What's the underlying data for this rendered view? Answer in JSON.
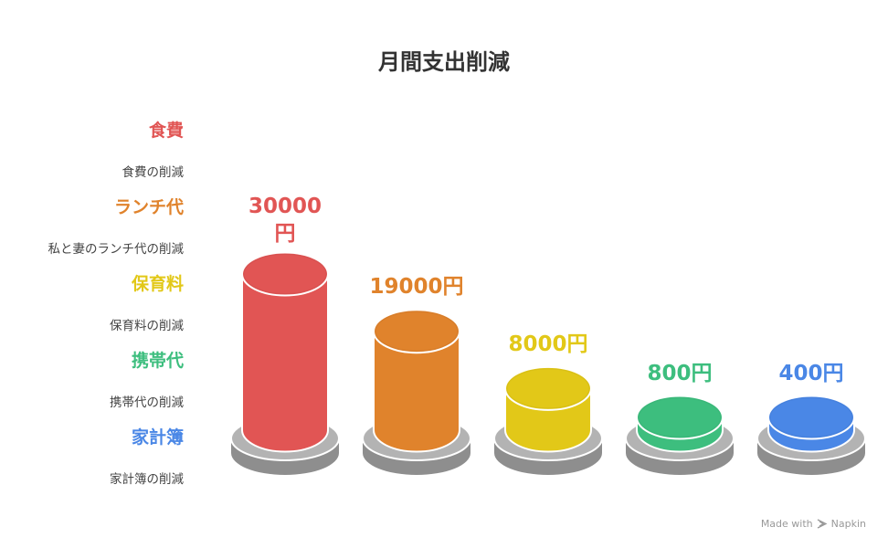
{
  "title": "月間支出削減",
  "chart_data": {
    "type": "bar",
    "title": "月間支出削減",
    "categories": [
      "食費",
      "ランチ代",
      "保育料",
      "携帯代",
      "家計簿"
    ],
    "descriptions": [
      "食費の削減",
      "私と妻のランチ代の削減",
      "保育料の削減",
      "携帯代の削減",
      "家計簿の削減"
    ],
    "values": [
      30000,
      19000,
      8000,
      800,
      400
    ],
    "value_labels": [
      "30000円",
      "19000円",
      "8000円",
      "800円",
      "400円"
    ],
    "unit": "円",
    "colors": [
      "#E15554",
      "#E0832C",
      "#E2C818",
      "#3DBE7E",
      "#4A87E6"
    ],
    "legend_position": "left"
  },
  "footer": {
    "made_with": "Made with",
    "brand": "Napkin"
  }
}
